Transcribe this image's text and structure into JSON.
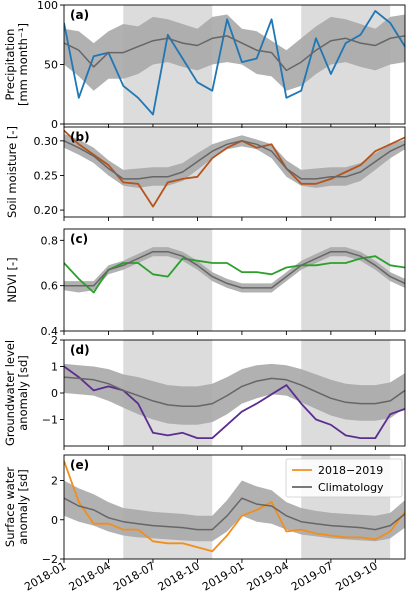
{
  "x_tick_labels": [
    "2018-01",
    "2018-04",
    "2018-07",
    "2018-10",
    "2019-01",
    "2019-04",
    "2019-07",
    "2019-10"
  ],
  "legend": {
    "observed": "2018−2019",
    "climatology": "Climatology"
  },
  "colors": {
    "precip": "#1f77b4",
    "soil": "#b5541c",
    "ndvi": "#2ca02c",
    "groundwater": "#5c2d91",
    "surface": "#f28e1c",
    "clim_line": "#666666",
    "band": "#a8a8a8",
    "shade": "#dcdcdc"
  },
  "chart_data": [
    {
      "type": "line",
      "panel_label": "(a)",
      "ylabel_lines": [
        "Precipitation",
        "[mm month⁻¹]"
      ],
      "ylim": [
        0,
        100
      ],
      "yticks": [
        0,
        50,
        100
      ],
      "x": [
        0,
        1,
        2,
        3,
        4,
        5,
        6,
        7,
        8,
        9,
        10,
        11,
        12,
        13,
        14,
        15,
        16,
        17,
        18,
        19,
        20,
        21,
        22,
        23
      ],
      "shaded_regions": [
        [
          4,
          10
        ],
        [
          16,
          22
        ]
      ],
      "series": [
        {
          "name": "2018−2019",
          "color_key": "precip",
          "values": [
            85,
            22,
            57,
            60,
            32,
            22,
            8,
            75,
            55,
            35,
            28,
            88,
            52,
            55,
            88,
            22,
            28,
            72,
            42,
            68,
            75,
            95,
            85,
            65
          ]
        },
        {
          "name": "Climatology",
          "color_key": "clim_line",
          "values": [
            68,
            62,
            48,
            60,
            60,
            65,
            70,
            72,
            68,
            66,
            72,
            74,
            68,
            62,
            60,
            45,
            52,
            62,
            70,
            72,
            68,
            66,
            72,
            74
          ],
          "band_low": [
            50,
            40,
            28,
            38,
            38,
            42,
            50,
            52,
            48,
            45,
            50,
            52,
            50,
            42,
            40,
            28,
            32,
            42,
            50,
            52,
            48,
            45,
            50,
            52
          ],
          "band_high": [
            80,
            78,
            68,
            78,
            84,
            82,
            90,
            88,
            84,
            80,
            90,
            92,
            80,
            78,
            70,
            62,
            72,
            82,
            90,
            88,
            84,
            80,
            90,
            92
          ]
        }
      ]
    },
    {
      "type": "line",
      "panel_label": "(b)",
      "ylabel_lines": [
        "Soil moisture [-]"
      ],
      "ylim": [
        0.19,
        0.32
      ],
      "yticks": [
        0.2,
        0.25,
        0.3
      ],
      "x": [
        0,
        1,
        2,
        3,
        4,
        5,
        6,
        7,
        8,
        9,
        10,
        11,
        12,
        13,
        14,
        15,
        16,
        17,
        18,
        19,
        20,
        21,
        22,
        23
      ],
      "shaded_regions": [
        [
          4,
          10
        ],
        [
          16,
          22
        ]
      ],
      "series": [
        {
          "name": "2018−2019",
          "color_key": "soil",
          "values": [
            0.315,
            0.295,
            0.28,
            0.265,
            0.24,
            0.238,
            0.205,
            0.24,
            0.245,
            0.248,
            0.275,
            0.29,
            0.3,
            0.29,
            0.295,
            0.26,
            0.238,
            0.238,
            0.245,
            0.255,
            0.265,
            0.285,
            0.295,
            0.305
          ]
        },
        {
          "name": "Climatology",
          "color_key": "clim_line",
          "values": [
            0.3,
            0.29,
            0.278,
            0.26,
            0.245,
            0.245,
            0.248,
            0.248,
            0.255,
            0.27,
            0.285,
            0.295,
            0.3,
            0.295,
            0.285,
            0.26,
            0.245,
            0.245,
            0.248,
            0.248,
            0.255,
            0.27,
            0.285,
            0.295
          ],
          "band_low": [
            0.29,
            0.28,
            0.268,
            0.25,
            0.235,
            0.232,
            0.235,
            0.235,
            0.242,
            0.258,
            0.275,
            0.288,
            0.292,
            0.288,
            0.275,
            0.248,
            0.235,
            0.232,
            0.235,
            0.235,
            0.242,
            0.258,
            0.275,
            0.288
          ],
          "band_high": [
            0.31,
            0.302,
            0.29,
            0.272,
            0.258,
            0.26,
            0.262,
            0.262,
            0.268,
            0.282,
            0.295,
            0.302,
            0.308,
            0.302,
            0.295,
            0.272,
            0.258,
            0.26,
            0.262,
            0.262,
            0.268,
            0.282,
            0.295,
            0.302
          ]
        }
      ]
    },
    {
      "type": "line",
      "panel_label": "(c)",
      "ylabel_lines": [
        "NDVI [-]"
      ],
      "ylim": [
        0.4,
        0.85
      ],
      "yticks": [
        0.4,
        0.6,
        0.8
      ],
      "x": [
        0,
        1,
        2,
        3,
        4,
        5,
        6,
        7,
        8,
        9,
        10,
        11,
        12,
        13,
        14,
        15,
        16,
        17,
        18,
        19,
        20,
        21,
        22,
        23
      ],
      "shaded_regions": [
        [
          4,
          10
        ],
        [
          16,
          22
        ]
      ],
      "series": [
        {
          "name": "2018−2019",
          "color_key": "ndvi",
          "values": [
            0.7,
            0.63,
            0.57,
            0.67,
            0.7,
            0.7,
            0.65,
            0.64,
            0.72,
            0.71,
            0.7,
            0.7,
            0.66,
            0.66,
            0.65,
            0.68,
            0.69,
            0.69,
            0.7,
            0.7,
            0.72,
            0.73,
            0.69,
            0.68
          ]
        },
        {
          "name": "Climatology",
          "color_key": "clim_line",
          "values": [
            0.6,
            0.6,
            0.6,
            0.67,
            0.69,
            0.72,
            0.75,
            0.75,
            0.73,
            0.69,
            0.64,
            0.61,
            0.59,
            0.59,
            0.59,
            0.64,
            0.69,
            0.72,
            0.75,
            0.75,
            0.73,
            0.69,
            0.64,
            0.61
          ],
          "band_low": [
            0.58,
            0.57,
            0.58,
            0.65,
            0.67,
            0.7,
            0.73,
            0.73,
            0.71,
            0.67,
            0.62,
            0.59,
            0.57,
            0.57,
            0.57,
            0.62,
            0.67,
            0.7,
            0.73,
            0.73,
            0.71,
            0.67,
            0.62,
            0.59
          ],
          "band_high": [
            0.62,
            0.62,
            0.62,
            0.69,
            0.71,
            0.74,
            0.77,
            0.77,
            0.75,
            0.71,
            0.66,
            0.63,
            0.61,
            0.61,
            0.61,
            0.66,
            0.71,
            0.74,
            0.77,
            0.77,
            0.75,
            0.71,
            0.66,
            0.63
          ]
        }
      ]
    },
    {
      "type": "line",
      "panel_label": "(d)",
      "ylabel_lines": [
        "Groundwater level",
        "anomaly [sd]"
      ],
      "ylim": [
        -2,
        2
      ],
      "yticks": [
        -1,
        0,
        1,
        2
      ],
      "x": [
        0,
        1,
        2,
        3,
        4,
        5,
        6,
        7,
        8,
        9,
        10,
        11,
        12,
        13,
        14,
        15,
        16,
        17,
        18,
        19,
        20,
        21,
        22,
        23
      ],
      "shaded_regions": [
        [
          4,
          10
        ],
        [
          16,
          22
        ]
      ],
      "series": [
        {
          "name": "2018−2019",
          "color_key": "groundwater",
          "values": [
            1.0,
            0.6,
            0.1,
            0.25,
            0.1,
            -0.4,
            -1.5,
            -1.6,
            -1.5,
            -1.7,
            -1.7,
            -1.2,
            -0.7,
            -0.4,
            -0.05,
            0.3,
            -0.4,
            -1.0,
            -1.2,
            -1.6,
            -1.7,
            -1.7,
            -0.8,
            -0.6
          ]
        },
        {
          "name": "Climatology",
          "color_key": "clim_line",
          "values": [
            0.6,
            0.55,
            0.5,
            0.35,
            0.1,
            -0.1,
            -0.3,
            -0.45,
            -0.5,
            -0.5,
            -0.4,
            -0.1,
            0.25,
            0.45,
            0.55,
            0.5,
            0.3,
            0.05,
            -0.2,
            -0.35,
            -0.4,
            -0.4,
            -0.3,
            0.1
          ],
          "band_low": [
            0.0,
            -0.05,
            -0.1,
            -0.3,
            -0.55,
            -0.8,
            -1.0,
            -1.15,
            -1.2,
            -1.2,
            -1.1,
            -0.8,
            -0.4,
            -0.2,
            -0.05,
            -0.1,
            -0.35,
            -0.6,
            -0.85,
            -1.0,
            -1.05,
            -1.05,
            -0.95,
            -0.55
          ],
          "band_high": [
            1.1,
            1.05,
            1.0,
            0.9,
            0.7,
            0.6,
            0.45,
            0.3,
            0.25,
            0.25,
            0.35,
            0.6,
            0.9,
            1.05,
            1.1,
            1.05,
            0.9,
            0.7,
            0.5,
            0.35,
            0.3,
            0.3,
            0.4,
            0.75
          ]
        }
      ]
    },
    {
      "type": "line",
      "panel_label": "(e)",
      "ylabel_lines": [
        "Surface water",
        "anomaly [sd]"
      ],
      "ylim": [
        -2,
        3.3
      ],
      "yticks": [
        -2,
        0,
        2
      ],
      "x": [
        0,
        1,
        2,
        3,
        4,
        5,
        6,
        7,
        8,
        9,
        10,
        11,
        12,
        13,
        14,
        15,
        16,
        17,
        18,
        19,
        20,
        21,
        22,
        23
      ],
      "shaded_regions": [
        [
          4,
          10
        ],
        [
          16,
          22
        ]
      ],
      "series": [
        {
          "name": "2018−2019",
          "color_key": "surface",
          "values": [
            3.0,
            0.9,
            -0.2,
            -0.2,
            -0.5,
            -0.5,
            -1.1,
            -1.2,
            -1.2,
            -1.4,
            -1.6,
            -0.8,
            0.2,
            0.5,
            0.9,
            -0.6,
            -0.5,
            -0.7,
            -0.8,
            -0.9,
            -0.9,
            -1.0,
            -0.6,
            0.4
          ]
        },
        {
          "name": "Climatology",
          "color_key": "clim_line",
          "values": [
            1.1,
            0.7,
            0.5,
            0.1,
            -0.1,
            -0.2,
            -0.3,
            -0.35,
            -0.4,
            -0.5,
            -0.5,
            0.2,
            1.1,
            0.8,
            0.7,
            0.2,
            -0.1,
            -0.2,
            -0.3,
            -0.35,
            -0.4,
            -0.5,
            -0.3,
            0.3
          ],
          "band_low": [
            0.2,
            -0.1,
            -0.3,
            -0.6,
            -0.8,
            -0.9,
            -0.95,
            -1.0,
            -1.05,
            -1.1,
            -1.1,
            -0.6,
            0.2,
            -0.1,
            -0.2,
            -0.5,
            -0.75,
            -0.85,
            -0.95,
            -1.0,
            -1.05,
            -1.1,
            -0.95,
            -0.4
          ],
          "band_high": [
            2.0,
            1.6,
            1.3,
            0.9,
            0.6,
            0.5,
            0.4,
            0.35,
            0.3,
            0.2,
            0.2,
            1.0,
            2.0,
            1.7,
            1.5,
            0.9,
            0.6,
            0.45,
            0.35,
            0.3,
            0.25,
            0.2,
            0.35,
            1.0
          ]
        }
      ]
    }
  ]
}
